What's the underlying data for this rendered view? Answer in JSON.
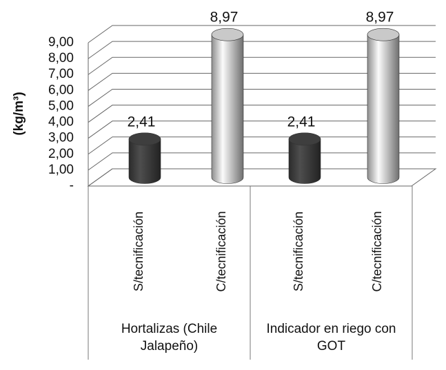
{
  "chart_data": {
    "type": "bar3d",
    "y_label": "(kg/m³)",
    "categories": [
      "S/tecnificación",
      "C/tecnificación",
      "S/tecnificación",
      "C/tecnificación"
    ],
    "groups": [
      "Hortalizas (Chile Jalapeño)",
      "Indicador en riego con GOT"
    ],
    "values": [
      2.41,
      8.97,
      2.41,
      8.97
    ],
    "value_labels": [
      "2,41",
      "8,97",
      "2,41",
      "8,97"
    ],
    "colors": [
      "#3e3e3e",
      "#c9c9c9",
      "#3e3e3e",
      "#c9c9c9"
    ],
    "ylim": [
      0,
      9
    ],
    "yticks": [
      {
        "value": 0,
        "label": "-"
      },
      {
        "value": 1,
        "label": "1,00"
      },
      {
        "value": 2,
        "label": "2,00"
      },
      {
        "value": 3,
        "label": "3,00"
      },
      {
        "value": 4,
        "label": "4,00"
      },
      {
        "value": 5,
        "label": "5,00"
      },
      {
        "value": 6,
        "label": "6,00"
      },
      {
        "value": 7,
        "label": "7,00"
      },
      {
        "value": 8,
        "label": "8,00"
      },
      {
        "value": 9,
        "label": "9,00"
      }
    ],
    "grid": true
  }
}
